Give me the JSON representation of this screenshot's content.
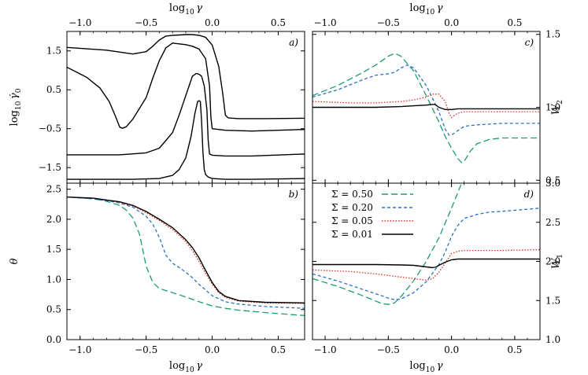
{
  "chart_data": [
    {
      "panel": "a)",
      "type": "line",
      "xlabel": "log10 γ",
      "x_position": "top",
      "ylabel": "log10 γ̇0",
      "y_position": "left",
      "xlim": [
        -1.1,
        0.7
      ],
      "ylim": [
        -1.9,
        2.0
      ],
      "xticks": [
        "−1.0",
        "−0.5",
        "0.0",
        "0.5"
      ],
      "yticks": [
        "1.5",
        "0.5",
        "−0.5",
        "−1.5"
      ],
      "series": [
        {
          "color": "#000000",
          "dash": "solid",
          "x": [
            -1.1,
            -0.8,
            -0.6,
            -0.5,
            -0.45,
            -0.4,
            -0.35,
            -0.3,
            -0.25,
            -0.2,
            -0.15,
            -0.1,
            -0.05,
            0.0,
            0.05,
            0.08,
            0.1,
            0.12,
            0.2,
            0.4,
            0.7
          ],
          "y": [
            1.59,
            1.52,
            1.42,
            1.48,
            1.62,
            1.78,
            1.88,
            1.9,
            1.91,
            1.92,
            1.92,
            1.9,
            1.85,
            1.65,
            1.1,
            0.4,
            -0.15,
            -0.22,
            -0.24,
            -0.24,
            -0.23
          ]
        },
        {
          "color": "#000000",
          "dash": "solid",
          "x": [
            -1.1,
            -0.95,
            -0.85,
            -0.78,
            -0.73,
            -0.7,
            -0.68,
            -0.65,
            -0.6,
            -0.5,
            -0.45,
            -0.4,
            -0.35,
            -0.3,
            -0.25,
            -0.2,
            -0.15,
            -0.1,
            -0.05,
            -0.02,
            -0.01,
            0.0,
            0.1,
            0.3,
            0.7
          ],
          "y": [
            1.08,
            0.82,
            0.55,
            0.2,
            -0.2,
            -0.46,
            -0.49,
            -0.45,
            -0.25,
            0.3,
            0.8,
            1.25,
            1.58,
            1.7,
            1.68,
            1.66,
            1.62,
            1.55,
            1.3,
            0.6,
            -0.2,
            -0.5,
            -0.54,
            -0.56,
            -0.52
          ]
        },
        {
          "color": "#000000",
          "dash": "solid",
          "x": [
            -1.1,
            -0.7,
            -0.5,
            -0.4,
            -0.3,
            -0.25,
            -0.2,
            -0.15,
            -0.12,
            -0.1,
            -0.08,
            -0.06,
            -0.04,
            -0.03,
            -0.02,
            0.0,
            0.1,
            0.3,
            0.7
          ],
          "y": [
            -1.17,
            -1.17,
            -1.12,
            -1.0,
            -0.6,
            -0.15,
            0.35,
            0.85,
            0.92,
            0.9,
            0.85,
            0.6,
            0.0,
            -0.8,
            -1.15,
            -1.18,
            -1.2,
            -1.2,
            -1.15
          ]
        },
        {
          "color": "#000000",
          "dash": "solid",
          "x": [
            -1.1,
            -0.6,
            -0.4,
            -0.3,
            -0.25,
            -0.2,
            -0.16,
            -0.13,
            -0.11,
            -0.1,
            -0.09,
            -0.08,
            -0.07,
            -0.06,
            -0.05,
            -0.03,
            0.0,
            0.1,
            0.3,
            0.7
          ],
          "y": [
            -1.8,
            -1.8,
            -1.78,
            -1.7,
            -1.55,
            -1.25,
            -0.7,
            -0.1,
            0.2,
            0.22,
            0.2,
            -0.3,
            -1.1,
            -1.55,
            -1.68,
            -1.74,
            -1.78,
            -1.8,
            -1.8,
            -1.78
          ]
        }
      ]
    },
    {
      "panel": "b)",
      "type": "line",
      "xlabel": "log10 γ",
      "x_position": "bottom",
      "ylabel": "θ",
      "y_position": "left",
      "xlim": [
        -1.1,
        0.7
      ],
      "ylim": [
        0.0,
        2.6
      ],
      "xticks": [
        "−1.0",
        "−0.5",
        "0.0",
        "0.5"
      ],
      "yticks": [
        "0.0",
        "0.5",
        "1.0",
        "1.5",
        "2.0",
        "2.5"
      ],
      "series": [
        {
          "name": "Σ = 0.50",
          "color": "#1a9a7a",
          "dash": "long",
          "x": [
            -1.1,
            -0.9,
            -0.8,
            -0.7,
            -0.65,
            -0.6,
            -0.55,
            -0.5,
            -0.45,
            -0.4,
            -0.3,
            -0.2,
            -0.1,
            0.0,
            0.1,
            0.2,
            0.4,
            0.7
          ],
          "y": [
            2.37,
            2.34,
            2.3,
            2.23,
            2.15,
            2.02,
            1.75,
            1.22,
            0.95,
            0.85,
            0.78,
            0.71,
            0.63,
            0.56,
            0.52,
            0.49,
            0.45,
            0.4
          ]
        },
        {
          "name": "Σ = 0.20",
          "color": "#2a70c2",
          "dash": "short",
          "x": [
            -1.1,
            -0.9,
            -0.8,
            -0.7,
            -0.6,
            -0.5,
            -0.45,
            -0.4,
            -0.35,
            -0.3,
            -0.25,
            -0.2,
            -0.15,
            -0.1,
            0.0,
            0.1,
            0.2,
            0.4,
            0.7
          ],
          "y": [
            2.37,
            2.34,
            2.31,
            2.27,
            2.2,
            2.05,
            1.92,
            1.7,
            1.4,
            1.27,
            1.2,
            1.12,
            1.03,
            0.92,
            0.73,
            0.63,
            0.59,
            0.55,
            0.52
          ]
        },
        {
          "name": "Σ = 0.05",
          "color": "#e03020",
          "dash": "dot",
          "x": [
            -1.1,
            -0.9,
            -0.8,
            -0.7,
            -0.6,
            -0.5,
            -0.4,
            -0.3,
            -0.2,
            -0.15,
            -0.1,
            -0.05,
            0.0,
            0.05,
            0.1,
            0.2,
            0.4,
            0.7
          ],
          "y": [
            2.37,
            2.35,
            2.32,
            2.28,
            2.22,
            2.11,
            1.98,
            1.83,
            1.63,
            1.48,
            1.3,
            1.1,
            0.92,
            0.78,
            0.7,
            0.64,
            0.61,
            0.6
          ]
        },
        {
          "name": "Σ = 0.01",
          "color": "#000000",
          "dash": "solid",
          "x": [
            -1.1,
            -0.9,
            -0.8,
            -0.7,
            -0.6,
            -0.5,
            -0.4,
            -0.3,
            -0.2,
            -0.15,
            -0.1,
            -0.05,
            0.0,
            0.05,
            0.1,
            0.2,
            0.4,
            0.7
          ],
          "y": [
            2.37,
            2.35,
            2.32,
            2.29,
            2.23,
            2.13,
            2.0,
            1.86,
            1.66,
            1.53,
            1.36,
            1.15,
            0.95,
            0.8,
            0.72,
            0.65,
            0.62,
            0.61
          ]
        }
      ]
    },
    {
      "panel": "c)",
      "type": "line",
      "xlabel": "log10 γ",
      "x_position": "top",
      "ylabel": "W2",
      "y_position": "right",
      "xlim": [
        -1.1,
        0.7
      ],
      "ylim": [
        0.48,
        1.52
      ],
      "xticks": [
        "−1.0",
        "−0.5",
        "0.0",
        "0.5"
      ],
      "yticks": [
        "0.5",
        "1.0",
        "1.5"
      ],
      "series": [
        {
          "name": "Σ = 0.50",
          "color": "#1a9a7a",
          "dash": "long",
          "x": [
            -1.1,
            -0.9,
            -0.7,
            -0.6,
            -0.5,
            -0.45,
            -0.4,
            -0.3,
            -0.2,
            -0.1,
            -0.05,
            0.0,
            0.05,
            0.08,
            0.1,
            0.15,
            0.2,
            0.3,
            0.4,
            0.7
          ],
          "y": [
            1.08,
            1.15,
            1.24,
            1.29,
            1.35,
            1.37,
            1.35,
            1.25,
            1.08,
            0.9,
            0.8,
            0.72,
            0.65,
            0.62,
            0.63,
            0.7,
            0.75,
            0.78,
            0.79,
            0.79
          ]
        },
        {
          "name": "Σ = 0.20",
          "color": "#2a70c2",
          "dash": "short",
          "x": [
            -1.1,
            -0.9,
            -0.7,
            -0.6,
            -0.5,
            -0.45,
            -0.4,
            -0.35,
            -0.3,
            -0.2,
            -0.1,
            -0.05,
            -0.02,
            0.0,
            0.05,
            0.1,
            0.2,
            0.4,
            0.7
          ],
          "y": [
            1.07,
            1.12,
            1.19,
            1.22,
            1.23,
            1.24,
            1.27,
            1.29,
            1.27,
            1.15,
            0.97,
            0.85,
            0.81,
            0.81,
            0.84,
            0.87,
            0.88,
            0.89,
            0.89
          ]
        },
        {
          "name": "Σ = 0.05",
          "color": "#e03020",
          "dash": "dot",
          "x": [
            -1.1,
            -0.8,
            -0.6,
            -0.4,
            -0.3,
            -0.2,
            -0.15,
            -0.1,
            -0.05,
            -0.02,
            0.0,
            0.05,
            0.1,
            0.2,
            0.4,
            0.7
          ],
          "y": [
            1.04,
            1.03,
            1.03,
            1.04,
            1.05,
            1.07,
            1.09,
            1.09,
            1.04,
            0.96,
            0.93,
            0.96,
            0.97,
            0.97,
            0.97,
            0.97
          ]
        },
        {
          "name": "Σ = 0.01",
          "color": "#000000",
          "dash": "solid",
          "x": [
            -1.1,
            -0.8,
            -0.6,
            -0.4,
            -0.3,
            -0.2,
            -0.15,
            -0.13,
            -0.1,
            -0.05,
            0.0,
            0.05,
            0.2,
            0.4,
            0.7
          ],
          "y": [
            1.0,
            1.0,
            1.0,
            1.005,
            1.01,
            1.015,
            1.02,
            1.02,
            1.0,
            0.985,
            0.985,
            0.99,
            0.99,
            0.99,
            0.99
          ]
        }
      ]
    },
    {
      "panel": "d)",
      "type": "line",
      "xlabel": "log10 γ",
      "x_position": "bottom",
      "ylabel": "W1",
      "y_position": "right",
      "xlim": [
        -1.1,
        0.7
      ],
      "ylim": [
        1.0,
        3.0
      ],
      "xticks": [
        "−1.0",
        "−0.5",
        "0.0",
        "0.5"
      ],
      "yticks": [
        "1.0",
        "1.5",
        "2.0",
        "2.5",
        "3.0"
      ],
      "legend": "top-left",
      "series": [
        {
          "name": "Σ = 0.50",
          "color": "#1a9a7a",
          "dash": "long",
          "x": [
            -1.1,
            -0.9,
            -0.7,
            -0.55,
            -0.5,
            -0.45,
            -0.4,
            -0.3,
            -0.2,
            -0.1,
            0.0,
            0.05,
            0.08
          ],
          "y": [
            1.78,
            1.68,
            1.56,
            1.46,
            1.45,
            1.47,
            1.55,
            1.75,
            2.0,
            2.3,
            2.68,
            2.88,
            3.0
          ]
        },
        {
          "name": "Σ = 0.20",
          "color": "#2a70c2",
          "dash": "short",
          "x": [
            -1.1,
            -0.9,
            -0.7,
            -0.55,
            -0.5,
            -0.45,
            -0.4,
            -0.3,
            -0.2,
            -0.1,
            -0.05,
            0.0,
            0.05,
            0.1,
            0.2,
            0.3,
            0.4,
            0.7
          ],
          "y": [
            1.84,
            1.75,
            1.64,
            1.56,
            1.53,
            1.51,
            1.52,
            1.6,
            1.74,
            1.96,
            2.12,
            2.32,
            2.46,
            2.55,
            2.6,
            2.63,
            2.64,
            2.68
          ]
        },
        {
          "name": "Σ = 0.05",
          "color": "#e03020",
          "dash": "dot",
          "x": [
            -1.1,
            -0.8,
            -0.6,
            -0.4,
            -0.3,
            -0.2,
            -0.15,
            -0.1,
            -0.05,
            0.0,
            0.05,
            0.1,
            0.2,
            0.4,
            0.7
          ],
          "y": [
            1.89,
            1.87,
            1.84,
            1.8,
            1.78,
            1.76,
            1.78,
            1.86,
            1.98,
            2.1,
            2.13,
            2.14,
            2.14,
            2.14,
            2.15
          ]
        },
        {
          "name": "Σ = 0.01",
          "color": "#000000",
          "dash": "solid",
          "x": [
            -1.1,
            -0.8,
            -0.6,
            -0.4,
            -0.3,
            -0.2,
            -0.15,
            -0.12,
            -0.1,
            -0.05,
            0.0,
            0.05,
            0.2,
            0.4,
            0.7
          ],
          "y": [
            1.96,
            1.96,
            1.96,
            1.955,
            1.95,
            1.93,
            1.92,
            1.93,
            1.95,
            1.99,
            2.02,
            2.03,
            2.03,
            2.03,
            2.03
          ]
        }
      ]
    }
  ]
}
